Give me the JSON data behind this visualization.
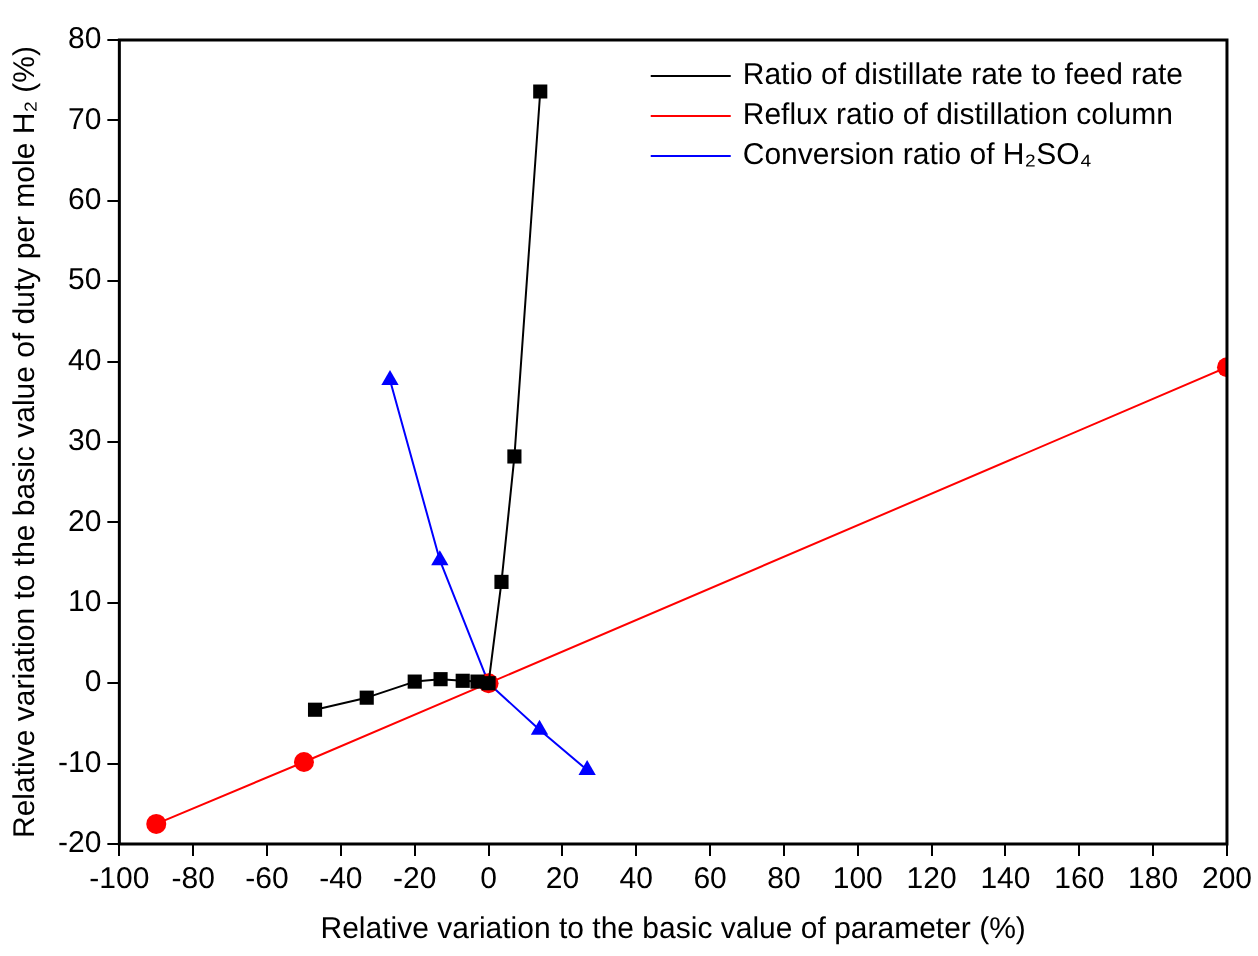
{
  "chart_data": {
    "type": "line",
    "xlabel": "Relative variation to the basic value of parameter (%)",
    "ylabel": "Relative variation to the basic value of duty per mole H₂ (%)",
    "xlim": [
      -100,
      200
    ],
    "xticks": [
      -100,
      -80,
      -60,
      -40,
      -20,
      0,
      20,
      40,
      60,
      80,
      100,
      120,
      140,
      160,
      180,
      200
    ],
    "ylim": [
      -20,
      80
    ],
    "yticks": [
      -20,
      -10,
      0,
      10,
      20,
      30,
      40,
      50,
      60,
      70,
      80
    ],
    "grid": false,
    "legend": "top right",
    "line_style": "solid",
    "series": [
      {
        "name": "Ratio of distillate rate to feed rate",
        "color": "#000000",
        "marker": "square",
        "x": [
          -47,
          -33,
          -20,
          -13,
          -7,
          -3,
          0,
          3.5,
          7,
          14
        ],
        "values": [
          -3.3,
          -1.8,
          0.2,
          0.5,
          0.3,
          0.2,
          0,
          12.6,
          28.2,
          73.6
        ]
      },
      {
        "name": "Reflux ratio of distillation column",
        "color": "#ff0000",
        "marker": "circle",
        "x": [
          -90,
          -50,
          0,
          200
        ],
        "values": [
          -17.5,
          -9.8,
          0,
          39.3
        ]
      },
      {
        "name": "Conversion ratio of H₂SO₄",
        "color": "#0000ff",
        "marker": "triangle",
        "x": [
          -26.7,
          -13.2,
          0,
          13.8,
          26.7
        ],
        "values": [
          37.7,
          15.3,
          0,
          -5.8,
          -10.8
        ]
      }
    ]
  }
}
